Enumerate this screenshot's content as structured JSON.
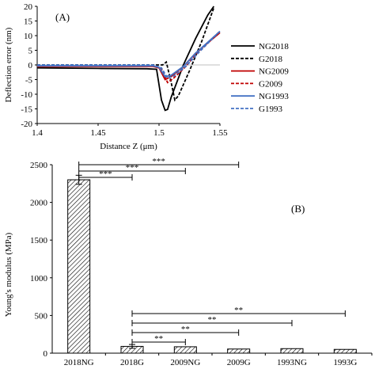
{
  "chart_data": [
    {
      "panel_label": "(A)",
      "type": "line",
      "xlabel": "Distance Z (μm)",
      "ylabel": "Deflection error (nm)",
      "xlim": [
        1.4,
        1.55
      ],
      "ylim": [
        -20,
        20
      ],
      "x_ticks": [
        "1.4",
        "1.45",
        "1.5",
        "1.55"
      ],
      "y_ticks": [
        "-20",
        "-15",
        "-10",
        "-5",
        "0",
        "5",
        "10",
        "15",
        "20"
      ],
      "legend_position": "right",
      "series": [
        {
          "name": "NG2018",
          "color": "#000000",
          "dash": "solid",
          "x": [
            1.4,
            1.45,
            1.49,
            1.498,
            1.502,
            1.505,
            1.507,
            1.51,
            1.52,
            1.53,
            1.54,
            1.545
          ],
          "y": [
            -1.0,
            -1.2,
            -1.3,
            -1.5,
            -12.0,
            -15.5,
            -15.2,
            -11.0,
            0.0,
            9.0,
            17.0,
            20.0
          ]
        },
        {
          "name": "G2018",
          "color": "#000000",
          "dash": "dashed",
          "x": [
            1.4,
            1.45,
            1.49,
            1.503,
            1.506,
            1.51,
            1.513,
            1.516,
            1.525,
            1.535,
            1.545
          ],
          "y": [
            0.0,
            0.0,
            0.0,
            0.0,
            1.0,
            -6.0,
            -12.0,
            -10.5,
            -2.0,
            8.0,
            19.5
          ]
        },
        {
          "name": "NG2009",
          "color": "#c00000",
          "dash": "solid",
          "x": [
            1.4,
            1.45,
            1.495,
            1.5,
            1.505,
            1.51,
            1.52,
            1.53,
            1.55
          ],
          "y": [
            -0.5,
            -0.5,
            -0.5,
            -1.0,
            -5.0,
            -4.0,
            -0.5,
            4.0,
            11.0
          ]
        },
        {
          "name": "G2009",
          "color": "#c00000",
          "dash": "dashed",
          "x": [
            1.4,
            1.45,
            1.497,
            1.502,
            1.507,
            1.512,
            1.522,
            1.532,
            1.55
          ],
          "y": [
            -0.2,
            -0.2,
            -0.2,
            -1.5,
            -6.0,
            -4.5,
            -0.5,
            4.5,
            11.5
          ]
        },
        {
          "name": "NG1993",
          "color": "#4472c4",
          "dash": "solid",
          "x": [
            1.4,
            1.45,
            1.495,
            1.5,
            1.505,
            1.51,
            1.52,
            1.53,
            1.55
          ],
          "y": [
            -0.3,
            -0.3,
            -0.3,
            -0.8,
            -4.0,
            -3.5,
            -0.5,
            4.0,
            11.5
          ]
        },
        {
          "name": "G1993",
          "color": "#4472c4",
          "dash": "dashed",
          "x": [
            1.4,
            1.45,
            1.495,
            1.502,
            1.507,
            1.512,
            1.522,
            1.532,
            1.55
          ],
          "y": [
            0.0,
            0.0,
            0.0,
            -1.0,
            -4.5,
            -3.8,
            -0.5,
            4.0,
            11.5
          ]
        }
      ]
    },
    {
      "panel_label": "(B)",
      "type": "bar",
      "ylabel": "Young's modulus (MPa)",
      "ylim": [
        0,
        2500
      ],
      "y_ticks": [
        "0",
        "500",
        "1000",
        "1500",
        "2000",
        "2500"
      ],
      "categories": [
        "2018NG",
        "2018G",
        "2009NG",
        "2009G",
        "1993NG",
        "1993G"
      ],
      "values": [
        2300,
        90,
        85,
        55,
        60,
        50
      ],
      "errors": [
        60,
        25,
        0,
        0,
        0,
        0
      ],
      "bar_pattern": "diagonal-hatch",
      "significance": [
        {
          "from": 0,
          "to": 1,
          "label": "***"
        },
        {
          "from": 0,
          "to": 2,
          "label": "***"
        },
        {
          "from": 0,
          "to": 3,
          "label": "***"
        },
        {
          "from": 1,
          "to": 2,
          "label": "**"
        },
        {
          "from": 1,
          "to": 3,
          "label": "**"
        },
        {
          "from": 1,
          "to": 4,
          "label": "**"
        },
        {
          "from": 1,
          "to": 5,
          "label": "**"
        }
      ]
    }
  ]
}
